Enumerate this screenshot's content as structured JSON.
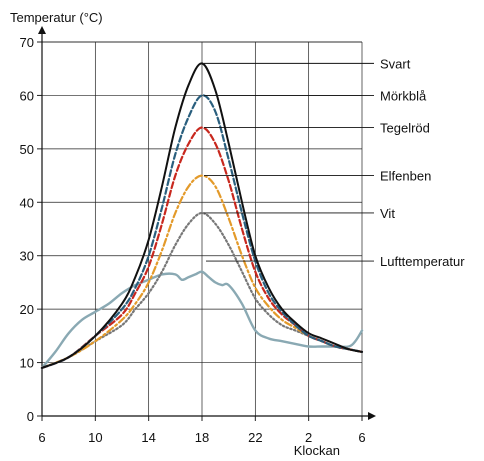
{
  "chart_data": {
    "type": "line",
    "ylabel": "Temperatur (°C)",
    "xlabel": "Klockan",
    "ylim": [
      0,
      70
    ],
    "yticks": [
      0,
      10,
      20,
      30,
      40,
      50,
      60,
      70
    ],
    "xticks": [
      "6",
      "10",
      "14",
      "18",
      "22",
      "2",
      "6"
    ],
    "grid": true,
    "legend": "right, with leader lines",
    "series": [
      {
        "name": "Svart",
        "color": "#111111",
        "style": "solid",
        "x": [
          6,
          8,
          10,
          12,
          13,
          14,
          15,
          16,
          17,
          18,
          19,
          20,
          21,
          22,
          23,
          24,
          25,
          26,
          27,
          28,
          29,
          30
        ],
        "y": [
          9,
          11,
          15,
          21,
          26,
          33,
          43,
          54,
          62,
          66,
          61,
          51,
          40,
          30,
          24,
          20,
          17.5,
          15.5,
          14.5,
          13.5,
          12.5,
          12
        ]
      },
      {
        "name": "Mörkblå",
        "color": "#2a5f7e",
        "style": "dashed",
        "x": [
          6,
          8,
          10,
          12,
          13,
          14,
          15,
          16,
          17,
          18,
          19,
          20,
          21,
          22,
          23,
          24,
          25,
          26,
          27,
          28,
          29,
          30
        ],
        "y": [
          9,
          11,
          15,
          20,
          24,
          30,
          39,
          49,
          56,
          60,
          57,
          48,
          38,
          29,
          23,
          19.5,
          17,
          15,
          14,
          13,
          12.5,
          12
        ]
      },
      {
        "name": "Tegelröd",
        "color": "#c8281e",
        "style": "dashed",
        "x": [
          6,
          8,
          10,
          12,
          13,
          14,
          15,
          16,
          17,
          18,
          19,
          20,
          21,
          22,
          23,
          24,
          25,
          26,
          27,
          28,
          29,
          30
        ],
        "y": [
          9,
          11,
          15,
          19,
          23,
          28,
          36,
          45,
          51,
          54,
          51,
          44,
          35,
          27,
          22,
          19,
          17,
          15,
          14,
          13,
          12.5,
          12
        ]
      },
      {
        "name": "Elfenben",
        "color": "#e39a2a",
        "style": "dashdot",
        "x": [
          6,
          8,
          10,
          12,
          13,
          14,
          15,
          16,
          17,
          18,
          19,
          20,
          21,
          22,
          23,
          24,
          25,
          26,
          27,
          28,
          29,
          30
        ],
        "y": [
          9,
          11,
          14,
          18,
          21,
          25,
          31,
          38,
          43,
          45,
          43,
          37,
          30,
          24,
          20.5,
          18,
          16.5,
          15,
          14,
          13,
          12.5,
          12
        ]
      },
      {
        "name": "Vit",
        "color": "#777777",
        "style": "dotted",
        "x": [
          6,
          8,
          10,
          12,
          13,
          14,
          15,
          16,
          17,
          18,
          19,
          20,
          21,
          22,
          23,
          24,
          25,
          26,
          27,
          28,
          29,
          30
        ],
        "y": [
          9,
          11,
          14,
          17,
          20,
          23,
          27,
          32,
          36,
          38,
          36,
          32,
          27,
          22,
          19,
          17,
          16,
          15,
          14,
          13,
          12.5,
          12
        ]
      },
      {
        "name": "Lufttemperatur",
        "color": "#8aa9b3",
        "style": "solid",
        "x": [
          6,
          7,
          8,
          9,
          10,
          11,
          12,
          13,
          14,
          15,
          16,
          16.5,
          17,
          17.5,
          18,
          18.5,
          19,
          19.5,
          20,
          21,
          22,
          23,
          24,
          25,
          26,
          27,
          28,
          29,
          29.5,
          30
        ],
        "y": [
          9,
          12,
          15.5,
          18,
          19.5,
          21,
          23,
          24.5,
          25.5,
          26.5,
          26.5,
          25.5,
          26,
          26.5,
          27,
          26,
          25,
          24.5,
          24.5,
          21,
          16,
          14.5,
          14,
          13.5,
          13,
          13,
          13,
          13,
          14,
          16
        ]
      }
    ]
  }
}
